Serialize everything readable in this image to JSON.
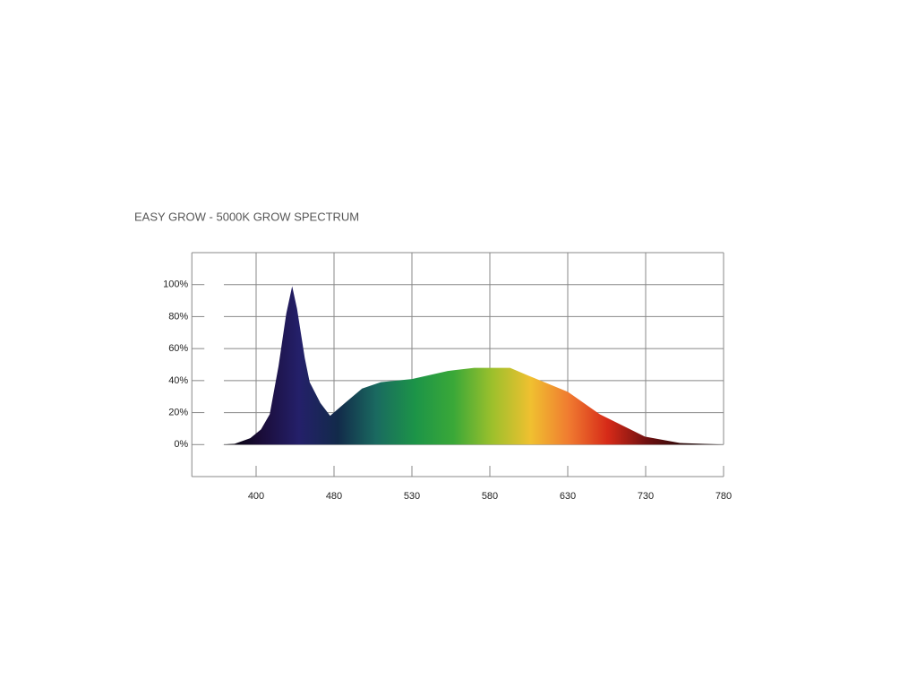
{
  "chart_data": {
    "type": "area",
    "title": "EASY GROW - 5000K GROW SPECTRUM",
    "x": [
      365,
      378,
      394,
      405,
      414,
      423,
      431,
      437,
      442,
      450,
      455,
      466,
      476,
      487,
      498,
      510,
      530,
      553,
      570,
      593,
      605,
      630,
      671,
      729,
      752,
      780
    ],
    "y": [
      0,
      0.5,
      4,
      9.5,
      19,
      49,
      82,
      99,
      85,
      54,
      39,
      26,
      18,
      26,
      35,
      39,
      41,
      46,
      48,
      48,
      43,
      33,
      19,
      5,
      1,
      0
    ],
    "xlim": [
      334,
      780
    ],
    "xticks": [
      400,
      480,
      530,
      580,
      630,
      730,
      780
    ],
    "ylim": [
      -20,
      120
    ],
    "yticks": [
      {
        "value": 0,
        "label": "0%"
      },
      {
        "value": 20,
        "label": "20%"
      },
      {
        "value": 40,
        "label": "40%"
      },
      {
        "value": 60,
        "label": "60%"
      },
      {
        "value": 80,
        "label": "80%"
      },
      {
        "value": 100,
        "label": "100%"
      }
    ],
    "grid": true,
    "gradient_colors": [
      "#000000",
      "#1a0c38",
      "#24206a",
      "#122a4a",
      "#1a6a60",
      "#1c9448",
      "#3aa838",
      "#9cc02c",
      "#f0c030",
      "#f07a30",
      "#d62a18",
      "#701010",
      "#2a0808",
      "#140404"
    ]
  }
}
